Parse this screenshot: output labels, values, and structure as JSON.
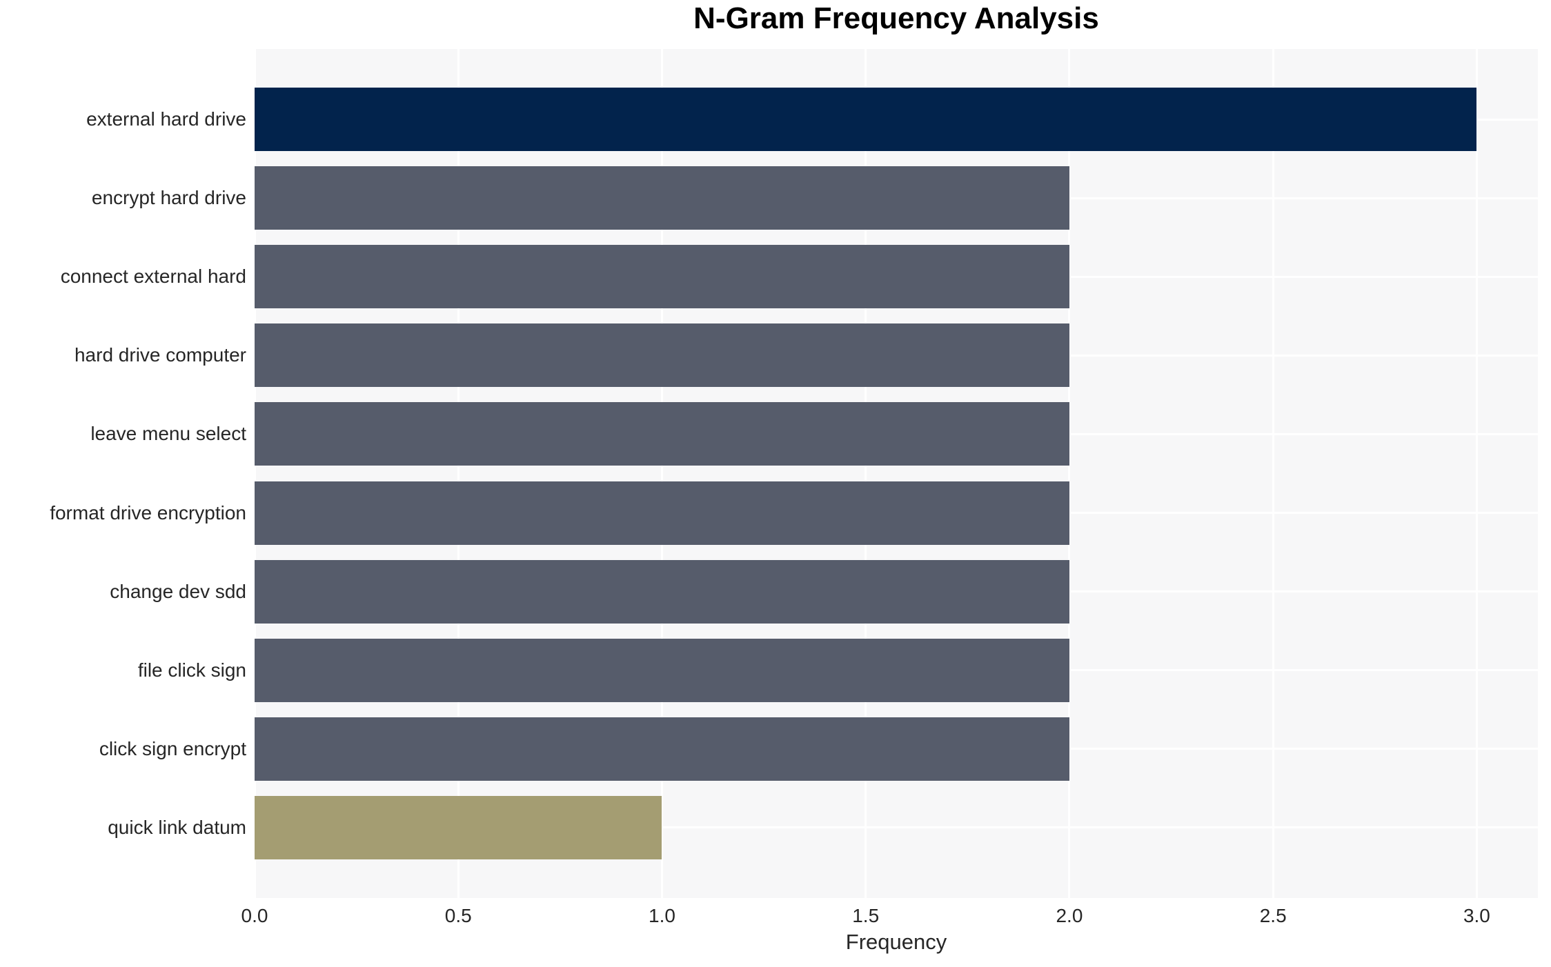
{
  "chart_data": {
    "type": "bar",
    "orientation": "horizontal",
    "title": "N-Gram Frequency Analysis",
    "xlabel": "Frequency",
    "ylabel": "",
    "categories": [
      "external hard drive",
      "encrypt hard drive",
      "connect external hard",
      "hard drive computer",
      "leave menu select",
      "format drive encryption",
      "change dev sdd",
      "file click sign",
      "click sign encrypt",
      "quick link datum"
    ],
    "values": [
      3,
      2,
      2,
      2,
      2,
      2,
      2,
      2,
      2,
      1
    ],
    "bar_colors": [
      "#02234c",
      "#565c6b",
      "#565c6b",
      "#565c6b",
      "#565c6b",
      "#565c6b",
      "#565c6b",
      "#565c6b",
      "#565c6b",
      "#a49d72"
    ],
    "xlim": [
      0,
      3.15
    ],
    "xtick_values": [
      0,
      0.5,
      1,
      1.5,
      2,
      2.5,
      3
    ],
    "xtick_labels": [
      "0.0",
      "0.5",
      "1.0",
      "1.5",
      "2.0",
      "2.5",
      "3.0"
    ],
    "grid": true,
    "legend_position": "none",
    "colors": {
      "plot_background": "#f7f7f8",
      "page_background": "#ffffff",
      "gridline": "#ffffff",
      "text": "#262626",
      "title_text": "#000000"
    }
  }
}
